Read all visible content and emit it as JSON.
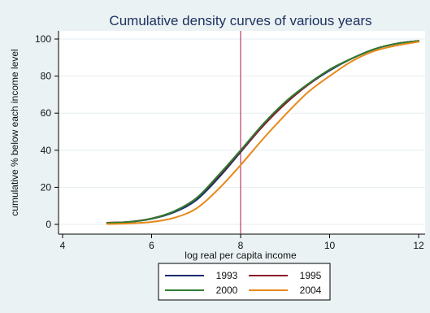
{
  "chart_data": {
    "type": "line",
    "title": "Cumulative density curves of various years",
    "xlabel": "log real per capita income",
    "ylabel": "cumulative % below each income level",
    "xlim": [
      4,
      12
    ],
    "ylim": [
      0,
      100
    ],
    "x_ticks": [
      "4",
      "6",
      "8",
      "10",
      "12"
    ],
    "y_ticks": [
      "0",
      "20",
      "40",
      "60",
      "80",
      "100"
    ],
    "grid": true,
    "legend_position": "bottom",
    "reference_line": {
      "x": 8,
      "color": "#b0154a"
    },
    "series": [
      {
        "name": "1993",
        "color": "#1a2b6e",
        "x": [
          5,
          5.5,
          6,
          6.5,
          7,
          7.5,
          8,
          8.5,
          9,
          9.5,
          10,
          10.5,
          11,
          11.5,
          12
        ],
        "y": [
          0.8,
          1.3,
          3,
          6.5,
          13,
          25,
          39,
          53,
          65,
          75,
          83,
          89.5,
          94.5,
          97.5,
          99
        ]
      },
      {
        "name": "1995",
        "color": "#8b1a2b",
        "x": [
          5,
          5.5,
          6,
          6.5,
          7,
          7.5,
          8,
          8.5,
          9,
          9.5,
          10,
          10.5,
          11,
          11.5,
          12
        ],
        "y": [
          0.9,
          1.4,
          3.2,
          7,
          14,
          26,
          39.5,
          53,
          65,
          75,
          83.5,
          89.5,
          94.5,
          97.5,
          99
        ]
      },
      {
        "name": "2000",
        "color": "#2e7d32",
        "x": [
          5,
          5.5,
          6,
          6.5,
          7,
          7.5,
          8,
          8.5,
          9,
          9.5,
          10,
          10.5,
          11,
          11.5,
          12
        ],
        "y": [
          0.8,
          1.3,
          3.1,
          7,
          14,
          26.5,
          40,
          54,
          66,
          75.5,
          83.5,
          89.5,
          94.5,
          97.5,
          99
        ]
      },
      {
        "name": "2004",
        "color": "#e8891a",
        "x": [
          5,
          5.5,
          6,
          6.5,
          7,
          7.5,
          8,
          8.5,
          9,
          9.5,
          10,
          10.5,
          11,
          11.5,
          12
        ],
        "y": [
          0.2,
          0.5,
          1.3,
          3.5,
          8.5,
          19,
          32,
          46,
          59,
          71,
          80,
          88,
          93.5,
          96.5,
          98.5
        ]
      }
    ]
  }
}
